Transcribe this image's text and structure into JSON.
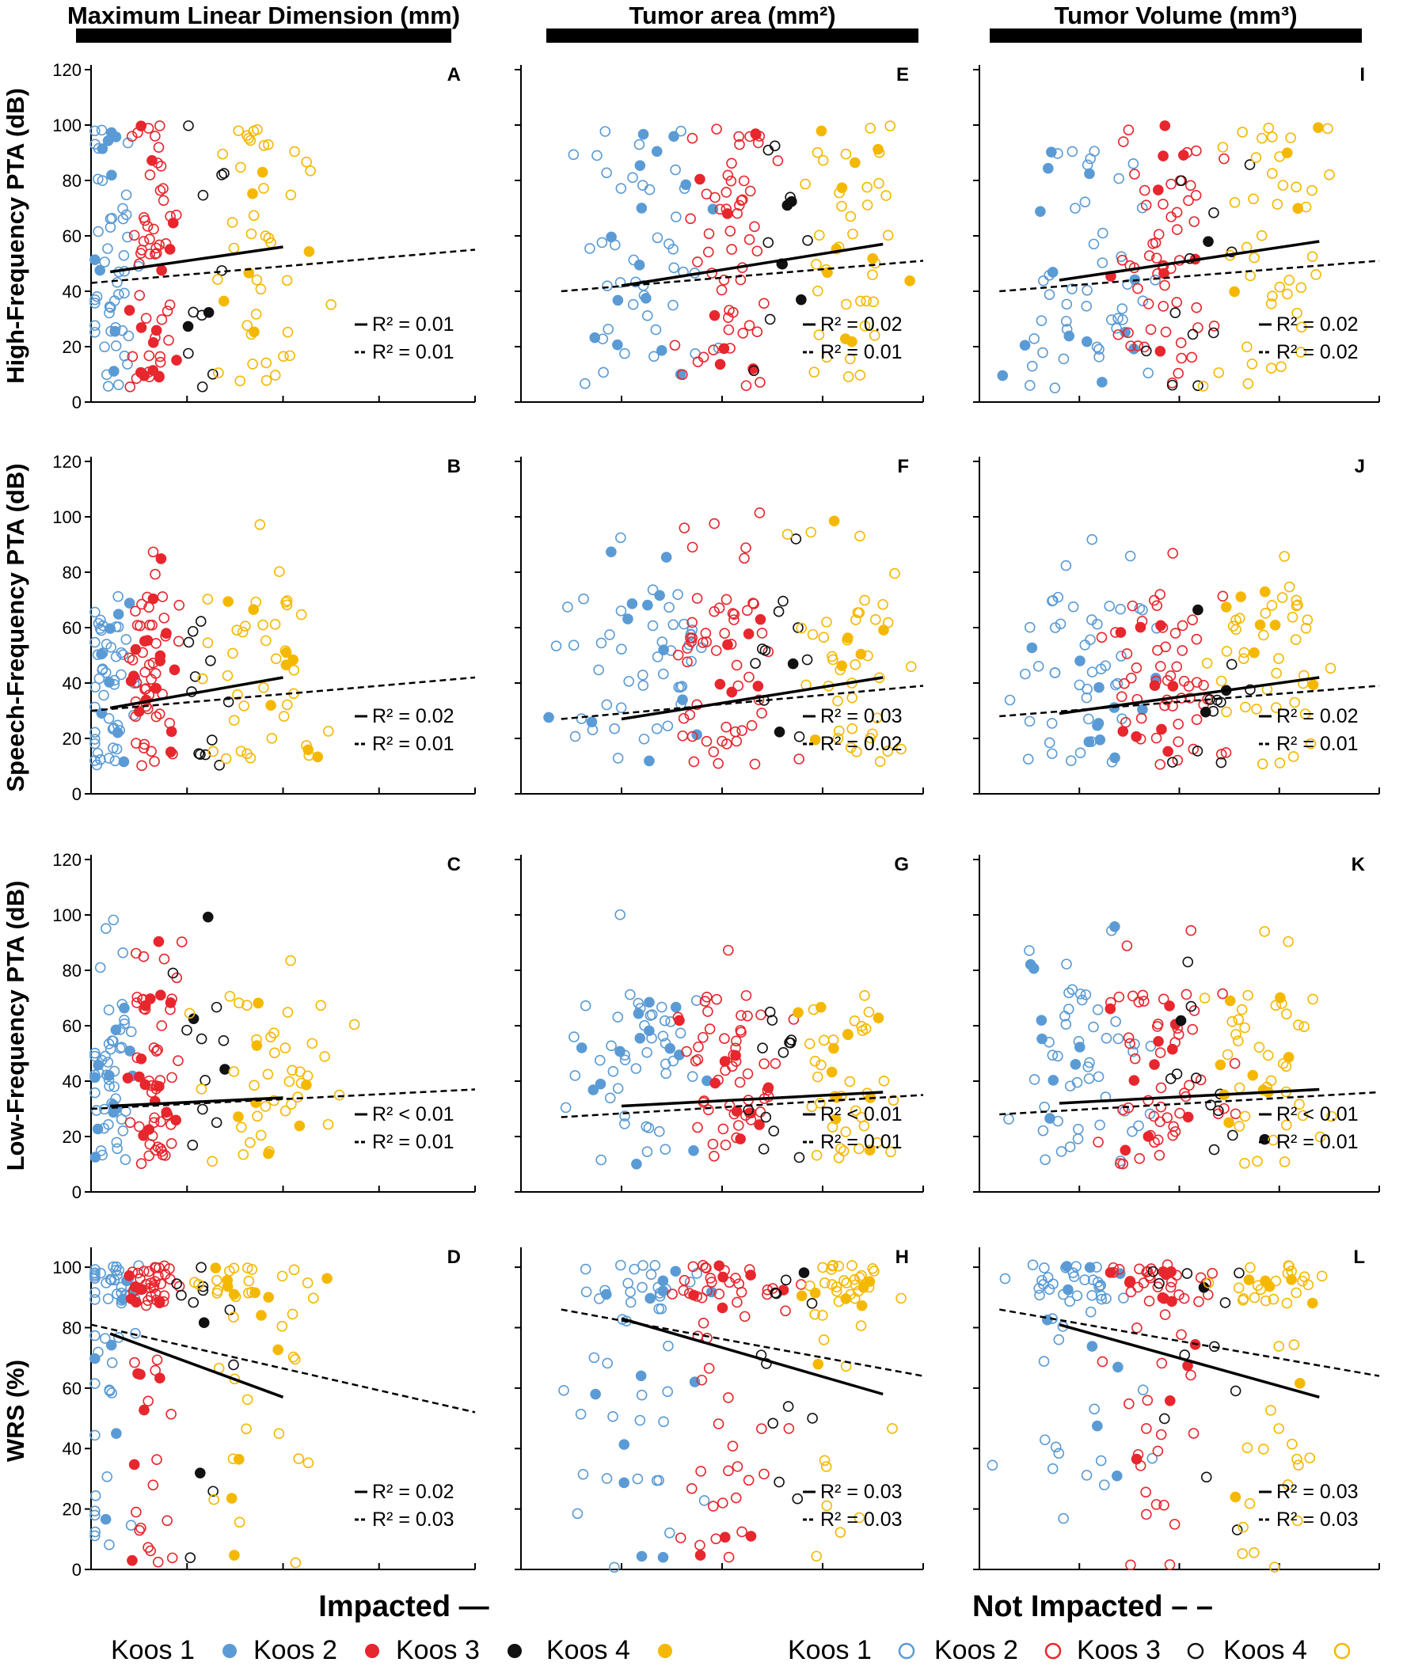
{
  "figure": {
    "columns": [
      {
        "title": "Maximum Linear Dimension (mm)"
      },
      {
        "title": "Tumor area (mm²)"
      },
      {
        "title": "Tumor Volume (mm³)"
      }
    ],
    "rows": [
      {
        "ylabel": "High-Frequency PTA (dB)",
        "yticks": [
          0,
          20,
          40,
          60,
          80,
          100,
          120
        ]
      },
      {
        "ylabel": "Speech-Frequency PTA (dB)",
        "yticks": [
          0,
          20,
          40,
          60,
          80,
          100,
          120
        ]
      },
      {
        "ylabel": "Low-Frequency PTA (dB)",
        "yticks": [
          0,
          20,
          40,
          60,
          80,
          100,
          120
        ]
      },
      {
        "ylabel": "WRS (%)",
        "yticks": [
          0,
          20,
          40,
          60,
          80,
          100
        ]
      }
    ],
    "legend": {
      "impacted_label": "Impacted —",
      "not_impacted_label": "Not Impacted – –",
      "impacted_items": [
        "Koos 1",
        "Koos 2",
        "Koos 3",
        "Koos 4"
      ],
      "not_impacted_items": [
        "Koos 1",
        "Koos 2",
        "Koos 3",
        "Koos 4"
      ]
    },
    "colors": {
      "koos1": "#5b9bd5",
      "koos2": "#e8262d",
      "koos3": "#111111",
      "koos4": "#f5b800"
    }
  },
  "chart_data": [
    {
      "panel": "A",
      "type": "scatter",
      "ylim": [
        0,
        120
      ],
      "r2_impacted": "R² = 0.01",
      "r2_not_impacted": "R² = 0.01",
      "impacted_fit": {
        "x": [
          0.05,
          0.5
        ],
        "y": [
          47,
          56
        ]
      },
      "not_impacted_fit": {
        "x": [
          0,
          1
        ],
        "y": [
          43,
          55
        ]
      }
    },
    {
      "panel": "B",
      "type": "scatter",
      "ylim": [
        0,
        120
      ],
      "r2_impacted": "R² = 0.02",
      "r2_not_impacted": "R² = 0.01",
      "impacted_fit": {
        "x": [
          0.05,
          0.5
        ],
        "y": [
          31,
          42
        ]
      },
      "not_impacted_fit": {
        "x": [
          0,
          1
        ],
        "y": [
          30,
          42
        ]
      }
    },
    {
      "panel": "C",
      "type": "scatter",
      "ylim": [
        0,
        120
      ],
      "r2_impacted": "R² < 0.01",
      "r2_not_impacted": "R² = 0.01",
      "impacted_fit": {
        "x": [
          0.05,
          0.5
        ],
        "y": [
          31,
          34
        ]
      },
      "not_impacted_fit": {
        "x": [
          0,
          1
        ],
        "y": [
          30,
          37
        ]
      }
    },
    {
      "panel": "D",
      "type": "scatter",
      "ylim": [
        0,
        105
      ],
      "r2_impacted": "R² = 0.02",
      "r2_not_impacted": "R² = 0.03",
      "impacted_fit": {
        "x": [
          0.05,
          0.5
        ],
        "y": [
          78,
          57
        ]
      },
      "not_impacted_fit": {
        "x": [
          0,
          1
        ],
        "y": [
          81,
          52
        ]
      }
    },
    {
      "panel": "E",
      "type": "scatter",
      "ylim": [
        0,
        120
      ],
      "r2_impacted": "R² = 0.02",
      "r2_not_impacted": "R² = 0.01",
      "impacted_fit": {
        "x": [
          0.25,
          0.9
        ],
        "y": [
          42,
          57
        ]
      },
      "not_impacted_fit": {
        "x": [
          0.1,
          1
        ],
        "y": [
          40,
          51
        ]
      }
    },
    {
      "panel": "F",
      "type": "scatter",
      "ylim": [
        0,
        120
      ],
      "r2_impacted": "R² = 0.03",
      "r2_not_impacted": "R² = 0.02",
      "impacted_fit": {
        "x": [
          0.25,
          0.9
        ],
        "y": [
          27,
          42
        ]
      },
      "not_impacted_fit": {
        "x": [
          0.1,
          1
        ],
        "y": [
          27,
          39
        ]
      }
    },
    {
      "panel": "G",
      "type": "scatter",
      "ylim": [
        0,
        120
      ],
      "r2_impacted": "R² < 0.01",
      "r2_not_impacted": "R² = 0.01",
      "impacted_fit": {
        "x": [
          0.25,
          0.9
        ],
        "y": [
          31,
          36
        ]
      },
      "not_impacted_fit": {
        "x": [
          0.1,
          1
        ],
        "y": [
          27,
          35
        ]
      }
    },
    {
      "panel": "H",
      "type": "scatter",
      "ylim": [
        0,
        105
      ],
      "r2_impacted": "R² = 0.03",
      "r2_not_impacted": "R² = 0.03",
      "impacted_fit": {
        "x": [
          0.25,
          0.9
        ],
        "y": [
          83,
          58
        ]
      },
      "not_impacted_fit": {
        "x": [
          0.1,
          1
        ],
        "y": [
          86,
          64
        ]
      }
    },
    {
      "panel": "I",
      "type": "scatter",
      "ylim": [
        0,
        120
      ],
      "r2_impacted": "R² = 0.02",
      "r2_not_impacted": "R² = 0.02",
      "impacted_fit": {
        "x": [
          0.2,
          0.85
        ],
        "y": [
          44,
          58
        ]
      },
      "not_impacted_fit": {
        "x": [
          0.05,
          1
        ],
        "y": [
          40,
          51
        ]
      }
    },
    {
      "panel": "J",
      "type": "scatter",
      "ylim": [
        0,
        120
      ],
      "r2_impacted": "R² = 0.02",
      "r2_not_impacted": "R² = 0.01",
      "impacted_fit": {
        "x": [
          0.2,
          0.85
        ],
        "y": [
          29,
          42
        ]
      },
      "not_impacted_fit": {
        "x": [
          0.05,
          1
        ],
        "y": [
          28,
          39
        ]
      }
    },
    {
      "panel": "K",
      "type": "scatter",
      "ylim": [
        0,
        120
      ],
      "r2_impacted": "R² < 0.01",
      "r2_not_impacted": "R² = 0.01",
      "impacted_fit": {
        "x": [
          0.2,
          0.85
        ],
        "y": [
          32,
          37
        ]
      },
      "not_impacted_fit": {
        "x": [
          0.05,
          1
        ],
        "y": [
          28,
          36
        ]
      }
    },
    {
      "panel": "L",
      "type": "scatter",
      "ylim": [
        0,
        105
      ],
      "r2_impacted": "R² = 0.03",
      "r2_not_impacted": "R² = 0.03",
      "impacted_fit": {
        "x": [
          0.2,
          0.85
        ],
        "y": [
          81,
          57
        ]
      },
      "not_impacted_fit": {
        "x": [
          0.05,
          1
        ],
        "y": [
          86,
          64
        ]
      }
    }
  ]
}
